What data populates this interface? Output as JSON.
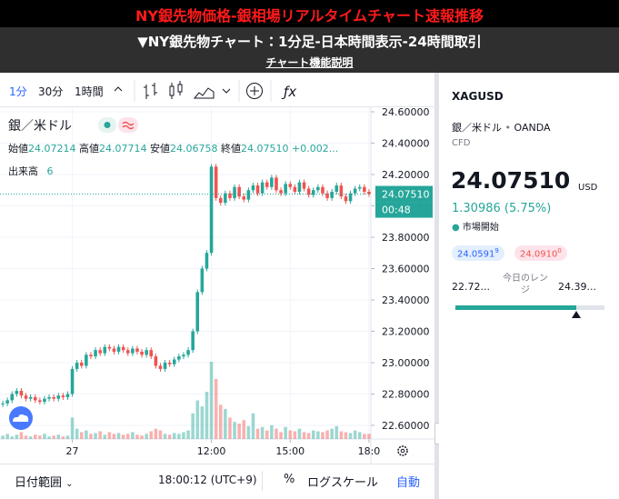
{
  "header": {
    "title": "NY銀先物価格-銀相場リアルタイムチャート速報推移",
    "subtitle": "▼NY銀先物チャート：1分足-日本時間表示-24時間取引",
    "link": "チャート機能説明"
  },
  "toolbar": {
    "intervals": [
      "1分",
      "30分",
      "1時間"
    ],
    "indicators": "ƒx"
  },
  "legend": {
    "symbol": "銀／米ドル",
    "ohlc": [
      {
        "label": "始値",
        "value": "24.07214"
      },
      {
        "label": "高値",
        "value": "24.07714"
      },
      {
        "label": "安値",
        "value": "24.06758"
      },
      {
        "label": "終値",
        "value": "24.07510"
      }
    ],
    "change": "+0.002...",
    "volume_label": "出来高",
    "volume_value": "6"
  },
  "chart_data": {
    "type": "candlestick",
    "values": [
      22.74,
      22.76,
      22.8,
      22.82,
      22.79,
      22.77,
      22.78,
      22.76,
      22.75,
      22.77,
      22.78,
      22.77,
      22.79,
      22.78,
      22.8,
      22.96,
      23.0,
      22.98,
      23.05,
      23.04,
      23.08,
      23.06,
      23.1,
      23.09,
      23.07,
      23.1,
      23.08,
      23.06,
      23.09,
      23.07,
      23.05,
      23.08,
      23.04,
      22.98,
      22.96,
      23.0,
      22.99,
      23.02,
      23.04,
      23.05,
      23.08,
      23.2,
      23.45,
      23.6,
      23.7,
      24.25,
      24.05,
      24.02,
      24.08,
      24.05,
      24.12,
      24.06,
      24.04,
      24.1,
      24.13,
      24.08,
      24.15,
      24.12,
      24.18,
      24.1,
      24.08,
      24.14,
      24.12,
      24.09,
      24.15,
      24.11,
      24.07,
      24.1,
      24.12,
      24.08,
      24.05,
      24.09,
      24.13,
      24.06,
      24.03,
      24.08,
      24.11,
      24.12,
      24.09,
      24.0751
    ],
    "volume": [
      4,
      6,
      3,
      5,
      8,
      4,
      3,
      5,
      4,
      6,
      3,
      4,
      5,
      3,
      4,
      25,
      12,
      8,
      10,
      6,
      7,
      9,
      5,
      8,
      6,
      7,
      5,
      6,
      8,
      5,
      4,
      6,
      9,
      12,
      10,
      6,
      5,
      7,
      6,
      8,
      10,
      30,
      45,
      38,
      55,
      90,
      70,
      40,
      35,
      25,
      20,
      18,
      22,
      15,
      30,
      12,
      14,
      10,
      16,
      12,
      8,
      14,
      10,
      9,
      12,
      8,
      7,
      10,
      9,
      8,
      10,
      12,
      15,
      9,
      8,
      7,
      10,
      8,
      6,
      6
    ],
    "xlim": [
      -0.6,
      79.4
    ],
    "xticks": [
      {
        "value": 15,
        "label": "27"
      },
      {
        "value": 45,
        "label": "12:00"
      },
      {
        "value": 62,
        "label": "15:00"
      },
      {
        "value": 79,
        "label": "18:0"
      }
    ],
    "ylim": [
      22.513,
      24.629
    ],
    "yticks": [
      {
        "value": 22.6,
        "label": "22.60000"
      },
      {
        "value": 22.8,
        "label": "22.80000"
      },
      {
        "value": 23.0,
        "label": "23.00000"
      },
      {
        "value": 23.2,
        "label": "23.20000"
      },
      {
        "value": 23.4,
        "label": "23.40000"
      },
      {
        "value": 23.6,
        "label": "23.60000"
      },
      {
        "value": 23.8,
        "label": "23.80000"
      },
      {
        "value": 24.0,
        "label": "24.00000"
      },
      {
        "value": 24.2,
        "label": "24.20000"
      },
      {
        "value": 24.4,
        "label": "24.40000"
      },
      {
        "value": 24.6,
        "label": "24.60000"
      }
    ],
    "grid": true,
    "up_color": "#26a69a",
    "down_color": "#ef5350",
    "current_price": {
      "value": 24.0751,
      "label": "24.07510",
      "countdown": "00:48"
    }
  },
  "side_panel": {
    "symbol": "XAGUSD",
    "name": "銀／米ドル",
    "exchange": "OANDA",
    "kind": "CFD",
    "price": "24.07510",
    "currency": "USD",
    "change": "1.30986 (5.75%)",
    "status": "市場開始",
    "bid": "24.0591",
    "bid_sup": "9",
    "ask": "24.0910",
    "ask_sup": "0",
    "range_low": "22.72...",
    "range_label": "今日のレンジ",
    "range_high": "24.39..."
  },
  "bottom_bar": {
    "date_range": "日付範囲",
    "time": "18:00:12 (UTC+9)",
    "percent": "%",
    "log": "ログスケール",
    "auto": "自動"
  }
}
